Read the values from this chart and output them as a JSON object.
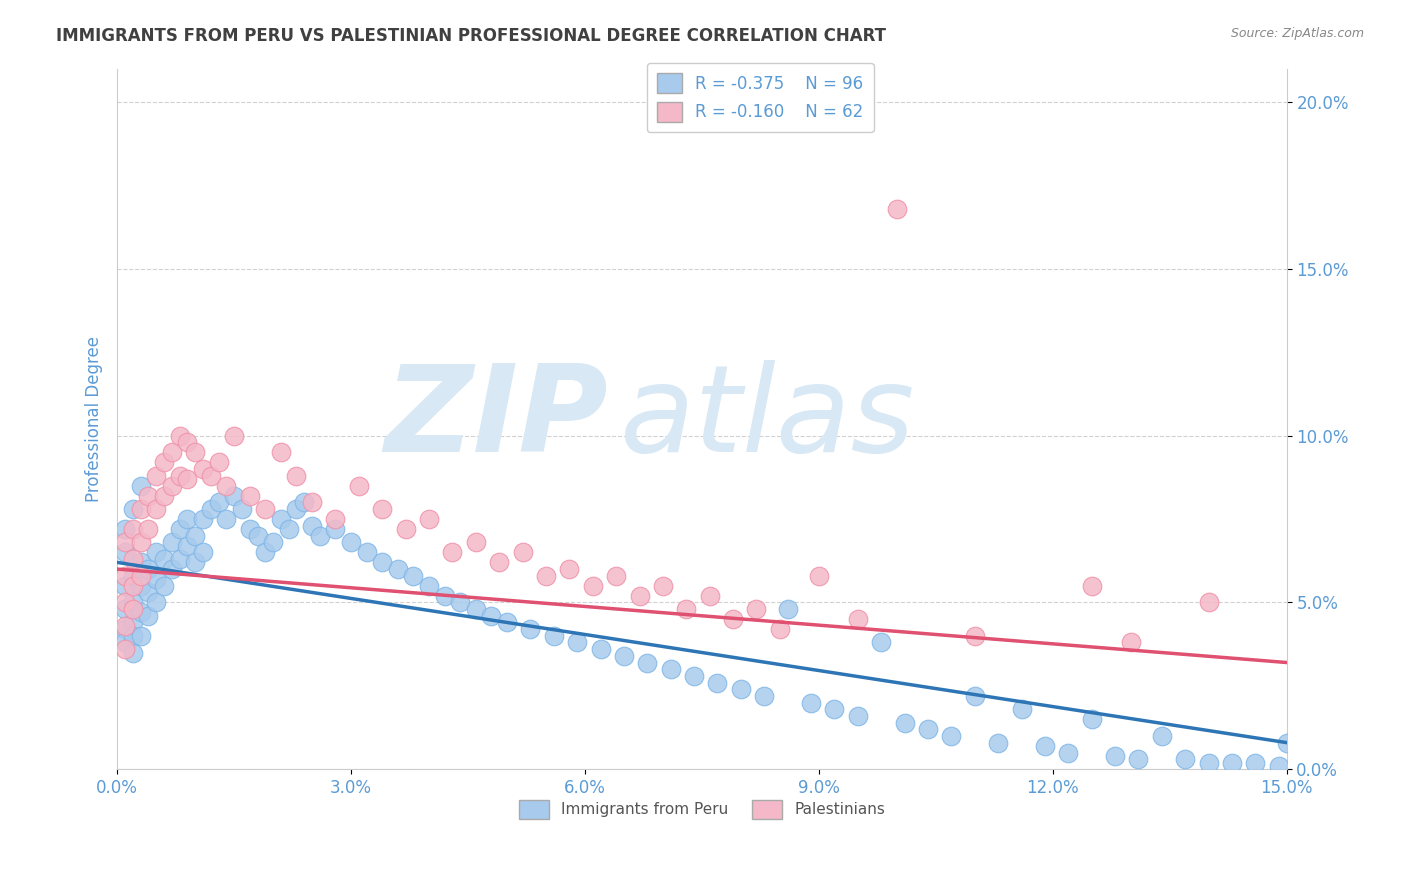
{
  "title": "IMMIGRANTS FROM PERU VS PALESTINIAN PROFESSIONAL DEGREE CORRELATION CHART",
  "source_text": "Source: ZipAtlas.com",
  "ylabel": "Professional Degree",
  "x_min": 0.0,
  "x_max": 0.15,
  "y_min": 0.0,
  "y_max": 0.21,
  "x_ticks": [
    0.0,
    0.03,
    0.06,
    0.09,
    0.12,
    0.15
  ],
  "x_tick_labels": [
    "0.0%",
    "3.0%",
    "6.0%",
    "9.0%",
    "12.0%",
    "15.0%"
  ],
  "y_ticks": [
    0.0,
    0.05,
    0.1,
    0.15,
    0.2
  ],
  "y_tick_labels": [
    "0.0%",
    "5.0%",
    "10.0%",
    "15.0%",
    "20.0%"
  ],
  "series1_label": "Immigrants from Peru",
  "series1_color": "#A8CAEC",
  "series1_edge": "#7EB6E8",
  "series1_R": -0.375,
  "series1_N": 96,
  "series2_label": "Palestinians",
  "series2_color": "#F4B8C8",
  "series2_edge": "#F090A8",
  "series2_R": -0.16,
  "series2_N": 62,
  "legend_R1": "R = -0.375",
  "legend_N1": "N = 96",
  "legend_R2": "R = -0.160",
  "legend_N2": "N = 62",
  "line1_color": "#2E75B6",
  "line2_color": "#E05070",
  "background_color": "#FFFFFF",
  "grid_color": "#CCCCCC",
  "title_color": "#404040",
  "axis_label_color": "#5B9BD5",
  "tick_color": "#5B9BD5",
  "watermark_zip": "ZIP",
  "watermark_atlas": "atlas",
  "watermark_color": "#D8E8F5",
  "trend1_x0": 0.0,
  "trend1_y0": 0.062,
  "trend1_x1": 0.15,
  "trend1_y1": 0.008,
  "trend2_x0": 0.0,
  "trend2_y0": 0.06,
  "trend2_x1": 0.15,
  "trend2_y1": 0.032,
  "s1_x": [
    0.001,
    0.001,
    0.001,
    0.001,
    0.001,
    0.002,
    0.002,
    0.002,
    0.002,
    0.002,
    0.003,
    0.003,
    0.003,
    0.003,
    0.004,
    0.004,
    0.004,
    0.005,
    0.005,
    0.005,
    0.006,
    0.006,
    0.007,
    0.007,
    0.008,
    0.008,
    0.009,
    0.009,
    0.01,
    0.01,
    0.011,
    0.011,
    0.012,
    0.013,
    0.014,
    0.015,
    0.016,
    0.017,
    0.018,
    0.019,
    0.02,
    0.021,
    0.022,
    0.023,
    0.024,
    0.025,
    0.026,
    0.028,
    0.03,
    0.032,
    0.034,
    0.036,
    0.038,
    0.04,
    0.042,
    0.044,
    0.046,
    0.048,
    0.05,
    0.053,
    0.056,
    0.059,
    0.062,
    0.065,
    0.068,
    0.071,
    0.074,
    0.077,
    0.08,
    0.083,
    0.086,
    0.089,
    0.092,
    0.095,
    0.098,
    0.101,
    0.104,
    0.107,
    0.11,
    0.113,
    0.116,
    0.119,
    0.122,
    0.125,
    0.128,
    0.131,
    0.134,
    0.137,
    0.14,
    0.143,
    0.146,
    0.149,
    0.15,
    0.001,
    0.002,
    0.003
  ],
  "s1_y": [
    0.065,
    0.055,
    0.048,
    0.042,
    0.038,
    0.058,
    0.05,
    0.044,
    0.04,
    0.035,
    0.062,
    0.055,
    0.047,
    0.04,
    0.06,
    0.053,
    0.046,
    0.065,
    0.057,
    0.05,
    0.063,
    0.055,
    0.068,
    0.06,
    0.072,
    0.063,
    0.075,
    0.067,
    0.07,
    0.062,
    0.075,
    0.065,
    0.078,
    0.08,
    0.075,
    0.082,
    0.078,
    0.072,
    0.07,
    0.065,
    0.068,
    0.075,
    0.072,
    0.078,
    0.08,
    0.073,
    0.07,
    0.072,
    0.068,
    0.065,
    0.062,
    0.06,
    0.058,
    0.055,
    0.052,
    0.05,
    0.048,
    0.046,
    0.044,
    0.042,
    0.04,
    0.038,
    0.036,
    0.034,
    0.032,
    0.03,
    0.028,
    0.026,
    0.024,
    0.022,
    0.048,
    0.02,
    0.018,
    0.016,
    0.038,
    0.014,
    0.012,
    0.01,
    0.022,
    0.008,
    0.018,
    0.007,
    0.005,
    0.015,
    0.004,
    0.003,
    0.01,
    0.003,
    0.002,
    0.002,
    0.002,
    0.001,
    0.008,
    0.072,
    0.078,
    0.085
  ],
  "s2_x": [
    0.001,
    0.001,
    0.001,
    0.001,
    0.001,
    0.002,
    0.002,
    0.002,
    0.002,
    0.003,
    0.003,
    0.003,
    0.004,
    0.004,
    0.005,
    0.005,
    0.006,
    0.006,
    0.007,
    0.007,
    0.008,
    0.008,
    0.009,
    0.009,
    0.01,
    0.011,
    0.012,
    0.013,
    0.014,
    0.015,
    0.017,
    0.019,
    0.021,
    0.023,
    0.025,
    0.028,
    0.031,
    0.034,
    0.037,
    0.04,
    0.043,
    0.046,
    0.049,
    0.052,
    0.055,
    0.058,
    0.061,
    0.064,
    0.067,
    0.07,
    0.073,
    0.076,
    0.079,
    0.082,
    0.085,
    0.09,
    0.095,
    0.1,
    0.11,
    0.125,
    0.13,
    0.14
  ],
  "s2_y": [
    0.068,
    0.058,
    0.05,
    0.043,
    0.036,
    0.072,
    0.063,
    0.055,
    0.048,
    0.078,
    0.068,
    0.058,
    0.082,
    0.072,
    0.088,
    0.078,
    0.092,
    0.082,
    0.095,
    0.085,
    0.1,
    0.088,
    0.098,
    0.087,
    0.095,
    0.09,
    0.088,
    0.092,
    0.085,
    0.1,
    0.082,
    0.078,
    0.095,
    0.088,
    0.08,
    0.075,
    0.085,
    0.078,
    0.072,
    0.075,
    0.065,
    0.068,
    0.062,
    0.065,
    0.058,
    0.06,
    0.055,
    0.058,
    0.052,
    0.055,
    0.048,
    0.052,
    0.045,
    0.048,
    0.042,
    0.058,
    0.045,
    0.168,
    0.04,
    0.055,
    0.038,
    0.05
  ]
}
